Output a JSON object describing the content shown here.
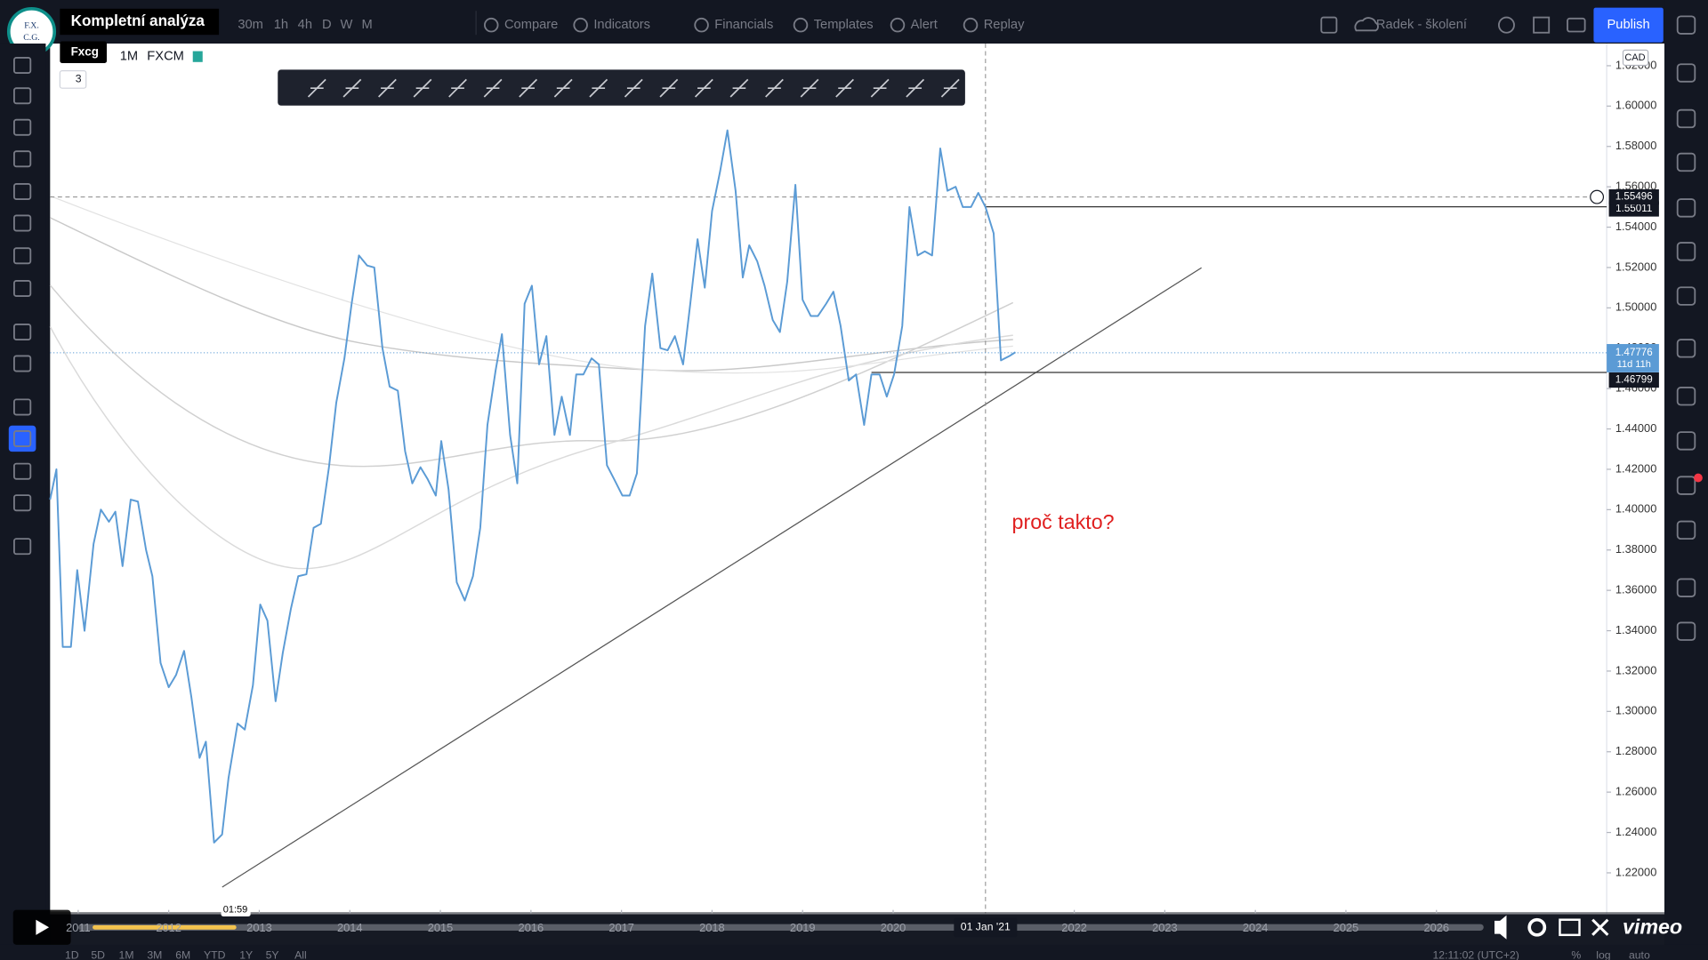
{
  "video": {
    "title": "Kompletní analýza",
    "channel": "Fxcg",
    "logo": [
      "F.X.",
      "C.G."
    ],
    "timestamp": "01:59",
    "brand": "vimeo"
  },
  "toolbar": {
    "intervals": [
      "30m",
      "1h",
      "4h",
      "D",
      "W",
      "M"
    ],
    "buttons": [
      "Compare",
      "Indicators",
      "Financials",
      "Templates",
      "Alert",
      "Replay"
    ],
    "account": "Radek - školení",
    "publish": "Publish"
  },
  "legend": {
    "interval": "1M",
    "source": "FXCM",
    "indicator_count": "3"
  },
  "chart": {
    "currency": "CAD",
    "xlim": [
      2010.69,
      2027.88
    ],
    "ylim": [
      1.2,
      1.631
    ],
    "yticks": [
      {
        "value": 1.22,
        "label": "1.22000"
      },
      {
        "value": 1.24,
        "label": "1.24000"
      },
      {
        "value": 1.26,
        "label": "1.26000"
      },
      {
        "value": 1.28,
        "label": "1.28000"
      },
      {
        "value": 1.3,
        "label": "1.30000"
      },
      {
        "value": 1.32,
        "label": "1.32000"
      },
      {
        "value": 1.34,
        "label": "1.34000"
      },
      {
        "value": 1.36,
        "label": "1.36000"
      },
      {
        "value": 1.38,
        "label": "1.38000"
      },
      {
        "value": 1.4,
        "label": "1.40000"
      },
      {
        "value": 1.42,
        "label": "1.42000"
      },
      {
        "value": 1.44,
        "label": "1.44000"
      },
      {
        "value": 1.46,
        "label": "1.46000"
      },
      {
        "value": 1.48,
        "label": "1.48000"
      },
      {
        "value": 1.5,
        "label": "1.50000"
      },
      {
        "value": 1.52,
        "label": "1.52000"
      },
      {
        "value": 1.54,
        "label": "1.54000"
      },
      {
        "value": 1.56,
        "label": "1.56000"
      },
      {
        "value": 1.58,
        "label": "1.58000"
      },
      {
        "value": 1.6,
        "label": "1.60000"
      },
      {
        "value": 1.62,
        "label": "1.62000"
      }
    ],
    "xticks": [
      2011,
      2012,
      2013,
      2014,
      2015,
      2016,
      2017,
      2018,
      2019,
      2020,
      2022,
      2023,
      2024,
      2025,
      2026
    ],
    "crosshair": {
      "date": "01 Jan '21",
      "price": {
        "value": 1.55496,
        "label": "1.55496"
      }
    },
    "horizontal_lines": [
      {
        "value": 1.55011,
        "label": "1.55011"
      },
      {
        "value": 1.46799,
        "label": "1.46799"
      }
    ],
    "last_price": {
      "value": 1.47776,
      "label": "1.47776",
      "countdown": "11d 11h"
    },
    "annotation": "proč takto?",
    "series": {
      "color": "#5b9bd5",
      "x": [
        2010.69,
        2010.76,
        2010.83,
        2010.92,
        2010.99,
        2011.07,
        2011.17,
        2011.25,
        2011.34,
        2011.41,
        2011.49,
        2011.58,
        2011.66,
        2011.75,
        2011.82,
        2011.91,
        2012.0,
        2012.08,
        2012.17,
        2012.25,
        2012.34,
        2012.41,
        2012.5,
        2012.59,
        2012.66,
        2012.76,
        2012.84,
        2012.93,
        2013.01,
        2013.09,
        2013.18,
        2013.26,
        2013.35,
        2013.43,
        2013.52,
        2013.6,
        2013.68,
        2013.77,
        2013.85,
        2013.94,
        2014.02,
        2014.1,
        2014.19,
        2014.27,
        2014.36,
        2014.44,
        2014.53,
        2014.61,
        2014.69,
        2014.78,
        2014.86,
        2014.95,
        2015.01,
        2015.09,
        2015.18,
        2015.27,
        2015.36,
        2015.44,
        2015.52,
        2015.61,
        2015.68,
        2015.77,
        2015.85,
        2015.93,
        2016.01,
        2016.09,
        2016.17,
        2016.26,
        2016.34,
        2016.43,
        2016.5,
        2016.58,
        2016.67,
        2016.75,
        2016.84,
        2016.92,
        2017.01,
        2017.09,
        2017.17,
        2017.26,
        2017.34,
        2017.43,
        2017.51,
        2017.59,
        2017.68,
        2017.76,
        2017.84,
        2017.92,
        2018.0,
        2018.09,
        2018.17,
        2018.26,
        2018.34,
        2018.41,
        2018.5,
        2018.58,
        2018.67,
        2018.75,
        2018.83,
        2018.92,
        2019.0,
        2019.09,
        2019.17,
        2019.26,
        2019.34,
        2019.42,
        2019.51,
        2019.59,
        2019.68,
        2019.76,
        2019.85,
        2019.93,
        2020.01,
        2020.1,
        2020.18,
        2020.27,
        2020.35,
        2020.43,
        2020.52,
        2020.6,
        2020.69,
        2020.77,
        2020.86,
        2020.94,
        2021.02,
        2021.11,
        2021.19,
        2021.28,
        2021.35
      ],
      "values": [
        1.405,
        1.42,
        1.332,
        1.332,
        1.37,
        1.34,
        1.383,
        1.4,
        1.394,
        1.399,
        1.372,
        1.405,
        1.404,
        1.38,
        1.367,
        1.324,
        1.312,
        1.318,
        1.33,
        1.307,
        1.277,
        1.285,
        1.235,
        1.239,
        1.267,
        1.294,
        1.291,
        1.313,
        1.353,
        1.345,
        1.305,
        1.329,
        1.351,
        1.367,
        1.368,
        1.391,
        1.393,
        1.421,
        1.453,
        1.475,
        1.502,
        1.526,
        1.521,
        1.52,
        1.48,
        1.461,
        1.459,
        1.429,
        1.413,
        1.421,
        1.415,
        1.407,
        1.434,
        1.41,
        1.364,
        1.355,
        1.367,
        1.391,
        1.442,
        1.469,
        1.487,
        1.437,
        1.413,
        1.502,
        1.511,
        1.472,
        1.486,
        1.437,
        1.456,
        1.437,
        1.467,
        1.467,
        1.475,
        1.472,
        1.422,
        1.415,
        1.407,
        1.407,
        1.418,
        1.491,
        1.517,
        1.48,
        1.479,
        1.486,
        1.472,
        1.502,
        1.534,
        1.51,
        1.548,
        1.568,
        1.588,
        1.558,
        1.515,
        1.531,
        1.523,
        1.511,
        1.494,
        1.488,
        1.513,
        1.561,
        1.504,
        1.496,
        1.496,
        1.502,
        1.508,
        1.491,
        1.464,
        1.467,
        1.442,
        1.467,
        1.467,
        1.456,
        1.467,
        1.491,
        1.55,
        1.526,
        1.528,
        1.526,
        1.579,
        1.558,
        1.56,
        1.55,
        1.55,
        1.557,
        1.55,
        1.537,
        1.474,
        1.476,
        1.478
      ]
    }
  },
  "bottom_bar": {
    "ranges": [
      "1D",
      "5D",
      "1M",
      "3M",
      "6M",
      "YTD",
      "1Y",
      "5Y",
      "All"
    ],
    "clock": "12:11:02 (UTC+2)",
    "scale_options": [
      "%",
      "log",
      "auto"
    ]
  }
}
